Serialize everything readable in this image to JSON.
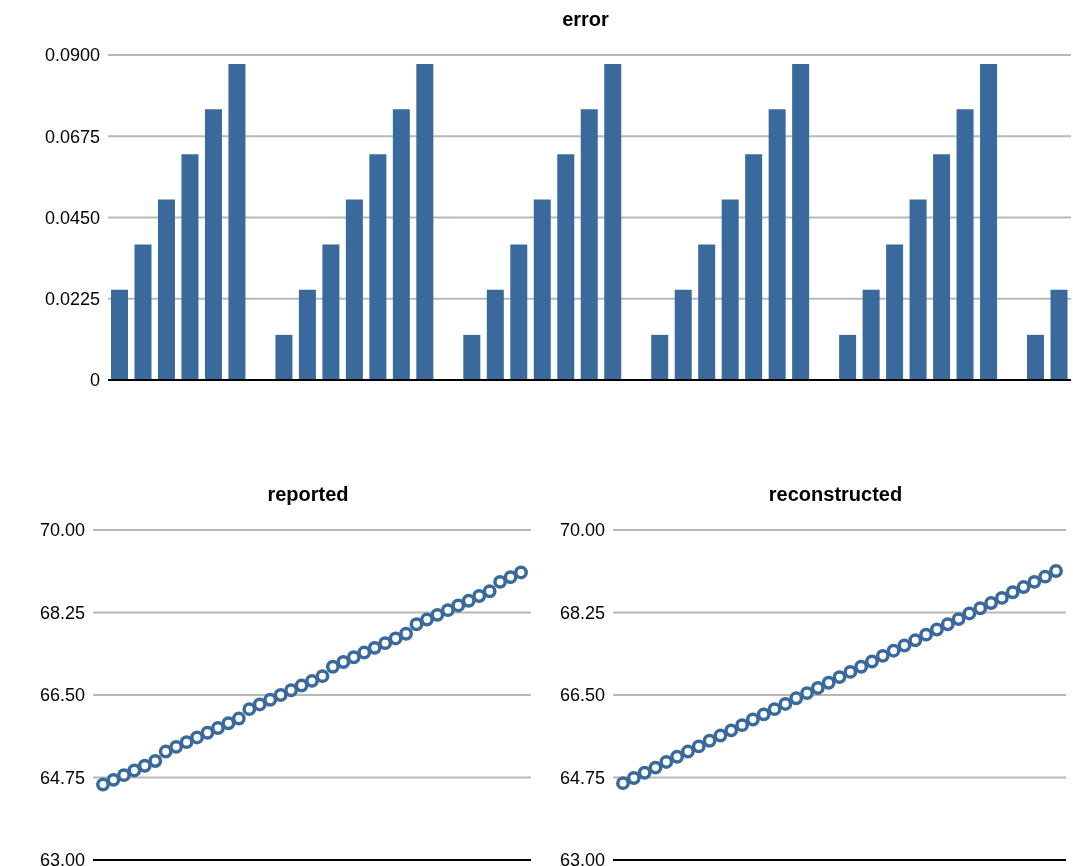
{
  "chart_data": [
    {
      "type": "bar",
      "title": "error",
      "categories": [
        null,
        null,
        null,
        null,
        null,
        null,
        null,
        null,
        null,
        null,
        null,
        null,
        null,
        null,
        null,
        null,
        null,
        null,
        null,
        null,
        null,
        null,
        null,
        null,
        null,
        null,
        null,
        null,
        null,
        null,
        null,
        null,
        null,
        null,
        null,
        null,
        null,
        null,
        null,
        null,
        null
      ],
      "values": [
        0.025,
        0.0375,
        0.05,
        0.0625,
        0.075,
        0.0875,
        0,
        0.0125,
        0.025,
        0.0375,
        0.05,
        0.0625,
        0.075,
        0.0875,
        0,
        0.0125,
        0.025,
        0.0375,
        0.05,
        0.0625,
        0.075,
        0.0875,
        0,
        0.0125,
        0.025,
        0.0375,
        0.05,
        0.0625,
        0.075,
        0.0875,
        0,
        0.0125,
        0.025,
        0.0375,
        0.05,
        0.0625,
        0.075,
        0.0875,
        0,
        0.0125,
        0.025
      ],
      "color": "#3a6a9c",
      "ylim": [
        0,
        0.09
      ],
      "yticks": [
        {
          "value": 0,
          "label": "0"
        },
        {
          "value": 0.0225,
          "label": "0.0225"
        },
        {
          "value": 0.045,
          "label": "0.0450"
        },
        {
          "value": 0.0675,
          "label": "0.0675"
        },
        {
          "value": 0.09,
          "label": "0.0900"
        }
      ],
      "grid": "y"
    },
    {
      "type": "scatter",
      "title": "reported",
      "categories": [
        null,
        null,
        null,
        null,
        null,
        null,
        null,
        null,
        null,
        null,
        null,
        null,
        null,
        null,
        null,
        null,
        null,
        null,
        null,
        null,
        null,
        null,
        null,
        null,
        null,
        null,
        null,
        null,
        null,
        null,
        null,
        null,
        null,
        null,
        null,
        null,
        null,
        null,
        null,
        null,
        null
      ],
      "values": [
        64.6,
        64.7,
        64.8,
        64.9,
        65.0,
        65.1,
        65.3,
        65.4,
        65.5,
        65.6,
        65.7,
        65.8,
        65.9,
        66.0,
        66.2,
        66.3,
        66.4,
        66.5,
        66.6,
        66.7,
        66.8,
        66.9,
        67.1,
        67.2,
        67.3,
        67.4,
        67.5,
        67.6,
        67.7,
        67.8,
        68.0,
        68.1,
        68.2,
        68.3,
        68.4,
        68.5,
        68.6,
        68.7,
        68.9,
        69.0,
        69.1
      ],
      "color": "#3a6a9c",
      "marker": "circle",
      "ylim": [
        63,
        70
      ],
      "yticks": [
        {
          "value": 63,
          "label": "63.00"
        },
        {
          "value": 64.75,
          "label": "64.75"
        },
        {
          "value": 66.5,
          "label": "66.50"
        },
        {
          "value": 68.25,
          "label": "68.25"
        },
        {
          "value": 70,
          "label": "70.00"
        }
      ],
      "grid": "y"
    },
    {
      "type": "scatter",
      "title": "reconstructed",
      "categories": [
        null,
        null,
        null,
        null,
        null,
        null,
        null,
        null,
        null,
        null,
        null,
        null,
        null,
        null,
        null,
        null,
        null,
        null,
        null,
        null,
        null,
        null,
        null,
        null,
        null,
        null,
        null,
        null,
        null,
        null,
        null,
        null,
        null,
        null,
        null,
        null,
        null,
        null,
        null,
        null,
        null
      ],
      "values": [
        64.63,
        64.74,
        64.85,
        64.96,
        65.08,
        65.19,
        65.3,
        65.41,
        65.53,
        65.64,
        65.75,
        65.86,
        65.98,
        66.09,
        66.2,
        66.31,
        66.43,
        66.54,
        66.65,
        66.76,
        66.88,
        66.99,
        67.1,
        67.21,
        67.33,
        67.44,
        67.55,
        67.66,
        67.78,
        67.89,
        68.0,
        68.11,
        68.23,
        68.34,
        68.45,
        68.56,
        68.68,
        68.79,
        68.9,
        69.01,
        69.13
      ],
      "color": "#3a6a9c",
      "marker": "circle",
      "ylim": [
        63,
        70
      ],
      "yticks": [
        {
          "value": 63,
          "label": "63.00"
        },
        {
          "value": 64.75,
          "label": "64.75"
        },
        {
          "value": 66.5,
          "label": "66.50"
        },
        {
          "value": 68.25,
          "label": "68.25"
        },
        {
          "value": 70,
          "label": "70.00"
        }
      ],
      "grid": "y"
    }
  ]
}
